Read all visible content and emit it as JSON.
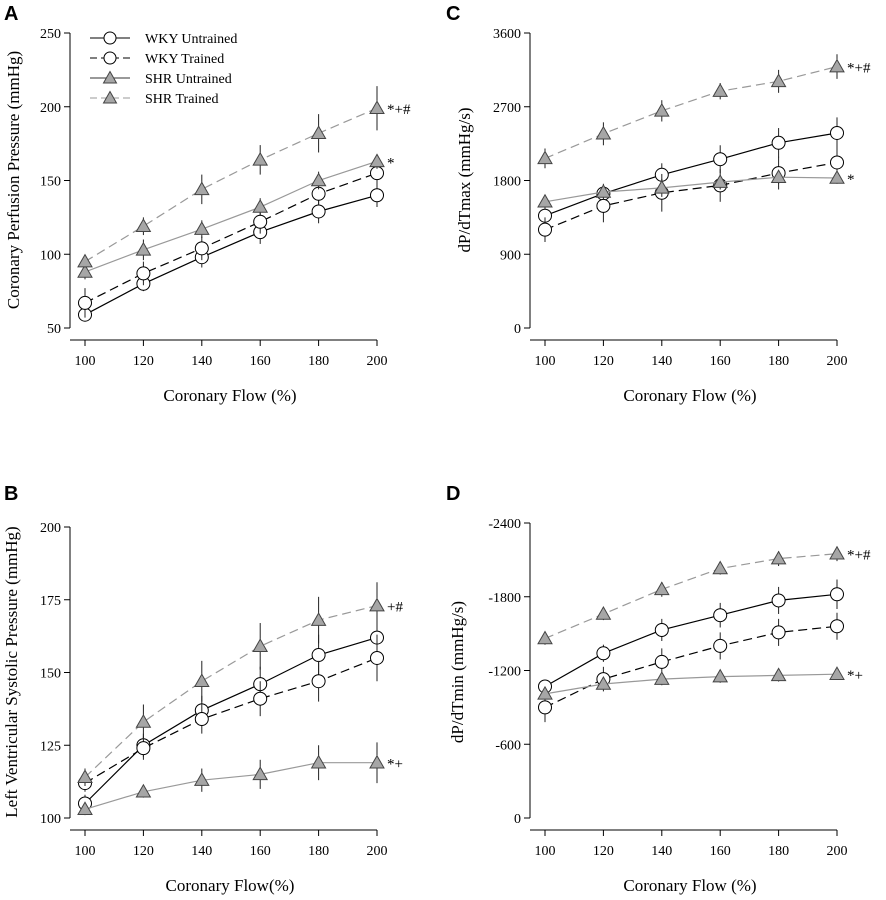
{
  "legend": {
    "entries": [
      {
        "label": "WKY Untrained",
        "series": "wky_untrained"
      },
      {
        "label": "WKY Trained",
        "series": "wky_trained"
      },
      {
        "label": "SHR Untrained",
        "series": "shr_untrained"
      },
      {
        "label": "SHR Trained",
        "series": "shr_trained"
      }
    ]
  },
  "series_styles": {
    "wky_untrained": {
      "marker": "circle",
      "line": "solid",
      "line_color": "#000000",
      "marker_fill": "#ffffff"
    },
    "wky_trained": {
      "marker": "circle",
      "line": "dashed",
      "line_color": "#000000",
      "marker_fill": "#ffffff"
    },
    "shr_untrained": {
      "marker": "triangle",
      "line": "solid",
      "line_color": "#999999",
      "marker_fill": "#a6a6a6"
    },
    "shr_trained": {
      "marker": "triangle",
      "line": "dashed",
      "line_color": "#999999",
      "marker_fill": "#a6a6a6"
    }
  },
  "chart_data": [
    {
      "panel": "A",
      "type": "line",
      "title": "",
      "xlabel": "Coronary Flow (%)",
      "ylabel": "Coronary Perfusion Pressure (mmHg)",
      "x": [
        100,
        120,
        140,
        160,
        180,
        200
      ],
      "xlim": [
        100,
        200
      ],
      "ylim": [
        50,
        250
      ],
      "yticks": [
        50,
        100,
        150,
        200,
        250
      ],
      "yticklabels": [
        "50",
        "100",
        "150",
        "200",
        "250"
      ],
      "series": [
        {
          "name": "WKY Untrained",
          "key": "wky_untrained",
          "values": [
            59,
            80,
            98,
            115,
            129,
            140
          ],
          "errors": [
            3,
            5,
            7,
            8,
            8,
            8
          ]
        },
        {
          "name": "WKY Trained",
          "key": "wky_trained",
          "values": [
            67,
            87,
            104,
            122,
            141,
            155
          ],
          "errors": [
            10,
            8,
            8,
            8,
            8,
            8
          ]
        },
        {
          "name": "SHR Untrained",
          "key": "shr_untrained",
          "values": [
            88,
            103,
            117,
            132,
            150,
            163
          ],
          "errors": [
            5,
            7,
            6,
            6,
            6,
            5
          ]
        },
        {
          "name": "SHR Trained",
          "key": "shr_trained",
          "values": [
            95,
            119,
            144,
            164,
            182,
            199
          ],
          "errors": [
            4,
            6,
            10,
            10,
            13,
            15
          ]
        }
      ],
      "annotations": [
        {
          "text": "*+#",
          "series": "shr_trained"
        },
        {
          "text": "*",
          "series": "shr_untrained"
        }
      ]
    },
    {
      "panel": "B",
      "type": "line",
      "title": "",
      "xlabel": "Coronary Flow(%)",
      "ylabel": "Left Ventricular Systolic Pressure (mmHg)",
      "x": [
        100,
        120,
        140,
        160,
        180,
        200
      ],
      "xlim": [
        100,
        200
      ],
      "ylim": [
        100,
        200
      ],
      "yticks": [
        100,
        125,
        150,
        175,
        200
      ],
      "yticklabels": [
        "100",
        "125",
        "150",
        "175",
        "200"
      ],
      "series": [
        {
          "name": "WKY Untrained",
          "key": "wky_untrained",
          "values": [
            105,
            125,
            137,
            146,
            156,
            162
          ],
          "errors": [
            3,
            4,
            5,
            6,
            7,
            7
          ]
        },
        {
          "name": "WKY Trained",
          "key": "wky_trained",
          "values": [
            112,
            124,
            134,
            141,
            147,
            155
          ],
          "errors": [
            3,
            4,
            5,
            6,
            7,
            8
          ]
        },
        {
          "name": "SHR Untrained",
          "key": "shr_untrained",
          "values": [
            103,
            109,
            113,
            115,
            119,
            119
          ],
          "errors": [
            2,
            2,
            4,
            5,
            6,
            7
          ]
        },
        {
          "name": "SHR Trained",
          "key": "shr_trained",
          "values": [
            114,
            133,
            147,
            159,
            168,
            173
          ],
          "errors": [
            3,
            6,
            7,
            8,
            8,
            8
          ]
        }
      ],
      "annotations": [
        {
          "text": "+#",
          "series": "shr_trained"
        },
        {
          "text": "*+",
          "series": "shr_untrained"
        }
      ]
    },
    {
      "panel": "C",
      "type": "line",
      "title": "",
      "xlabel": "Coronary Flow (%)",
      "ylabel": "dP/dTmax (mmHg/s)",
      "x": [
        100,
        120,
        140,
        160,
        180,
        200
      ],
      "xlim": [
        100,
        200
      ],
      "ylim": [
        0,
        3600
      ],
      "yticks": [
        0,
        900,
        1800,
        2700,
        3600
      ],
      "yticklabels": [
        "0",
        "900",
        "1800",
        "2700",
        "3600"
      ],
      "series": [
        {
          "name": "WKY Untrained",
          "key": "wky_untrained",
          "values": [
            1370,
            1640,
            1870,
            2060,
            2260,
            2380
          ],
          "errors": [
            150,
            120,
            140,
            170,
            180,
            190
          ]
        },
        {
          "name": "WKY Trained",
          "key": "wky_trained",
          "values": [
            1200,
            1490,
            1650,
            1740,
            1890,
            2020
          ],
          "errors": [
            150,
            200,
            230,
            200,
            200,
            200
          ]
        },
        {
          "name": "SHR Untrained",
          "key": "shr_untrained",
          "values": [
            1540,
            1660,
            1710,
            1780,
            1840,
            1830
          ],
          "errors": [
            70,
            70,
            110,
            90,
            80,
            70
          ]
        },
        {
          "name": "SHR Trained",
          "key": "shr_trained",
          "values": [
            2070,
            2370,
            2650,
            2890,
            3010,
            3190
          ],
          "errors": [
            120,
            140,
            130,
            100,
            140,
            150
          ]
        }
      ],
      "annotations": [
        {
          "text": "*+#",
          "series": "shr_trained"
        },
        {
          "text": "*",
          "series": "shr_untrained"
        }
      ]
    },
    {
      "panel": "D",
      "type": "line",
      "title": "",
      "xlabel": "Coronary Flow (%)",
      "ylabel": "dP/dTmin (mmHg/s)",
      "x": [
        100,
        120,
        140,
        160,
        180,
        200
      ],
      "xlim": [
        100,
        200
      ],
      "ylim": [
        0,
        -2400
      ],
      "yticks": [
        0,
        -600,
        -1200,
        -1800,
        -2400
      ],
      "yticklabels": [
        "0",
        "-600",
        "-1200",
        "-1800",
        "-2400"
      ],
      "series": [
        {
          "name": "WKY Untrained",
          "key": "wky_untrained",
          "values": [
            -1070,
            -1340,
            -1530,
            -1650,
            -1770,
            -1820
          ],
          "errors": [
            50,
            70,
            90,
            100,
            110,
            120
          ]
        },
        {
          "name": "WKY Trained",
          "key": "wky_trained",
          "values": [
            -900,
            -1130,
            -1270,
            -1400,
            -1510,
            -1560
          ],
          "errors": [
            120,
            100,
            110,
            110,
            110,
            110
          ]
        },
        {
          "name": "SHR Untrained",
          "key": "shr_untrained",
          "values": [
            -1010,
            -1090,
            -1130,
            -1150,
            -1160,
            -1170
          ],
          "errors": [
            40,
            40,
            50,
            50,
            50,
            40
          ]
        },
        {
          "name": "SHR Trained",
          "key": "shr_trained",
          "values": [
            -1460,
            -1660,
            -1860,
            -2030,
            -2110,
            -2150
          ],
          "errors": [
            50,
            50,
            60,
            50,
            60,
            60
          ]
        }
      ],
      "annotations": [
        {
          "text": "*+#",
          "series": "shr_trained"
        },
        {
          "text": "*+",
          "series": "shr_untrained"
        }
      ]
    }
  ]
}
